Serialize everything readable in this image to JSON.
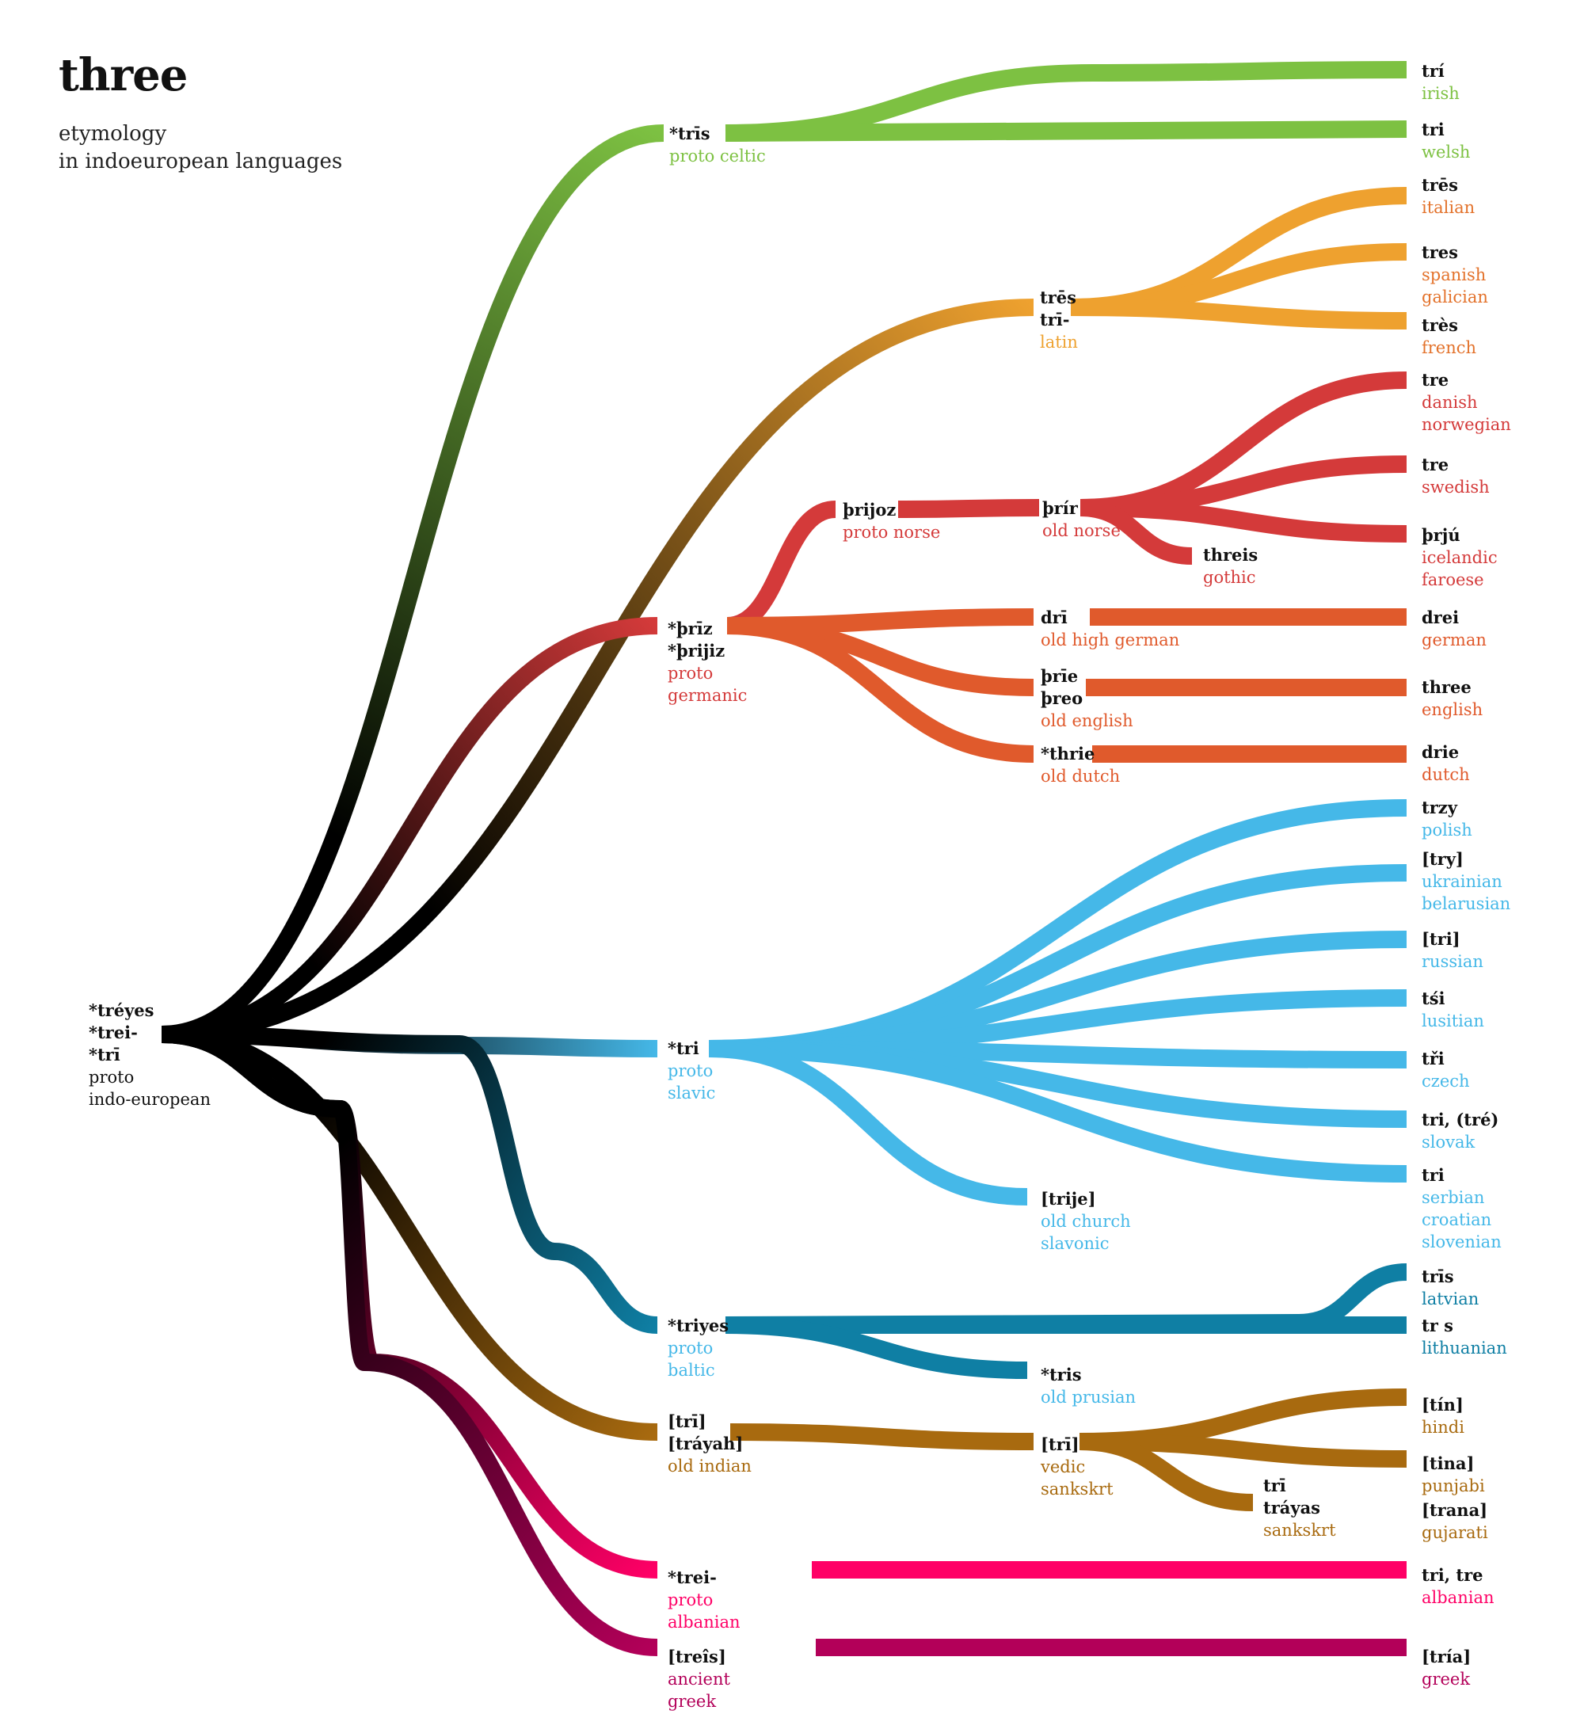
{
  "title": "three",
  "subtitle": [
    "etymology",
    "in indoeuropean languages"
  ],
  "colors": {
    "root": "#000000",
    "celtic": "#7dc142",
    "italic": "#eea12f",
    "germanic": "#d43a3a",
    "west_germanic": "#e05a2c",
    "slavic": "#45b8e8",
    "baltic": "#0f7fa4",
    "indic": "#a86a0f",
    "albanian": "#ff0066",
    "greek": "#b30059"
  },
  "nodes": [
    {
      "id": "pie",
      "words": [
        "*tréyes",
        "*trei-",
        "*trī"
      ],
      "lang": [
        "proto",
        "indo-european"
      ],
      "color": "#111111"
    },
    {
      "id": "proto-celtic",
      "words": [
        "*trīs"
      ],
      "lang": [
        "proto celtic"
      ],
      "color": "#7dc142"
    },
    {
      "id": "irish",
      "words": [
        "trí"
      ],
      "lang": [
        "irish"
      ],
      "color": "#7dc142"
    },
    {
      "id": "welsh",
      "words": [
        "tri"
      ],
      "lang": [
        "welsh"
      ],
      "color": "#7dc142"
    },
    {
      "id": "latin",
      "words": [
        "trēs",
        "trī-"
      ],
      "lang": [
        "latin"
      ],
      "color": "#eea12f"
    },
    {
      "id": "italian",
      "words": [
        "trēs"
      ],
      "lang": [
        "italian"
      ],
      "color": "#e3722b"
    },
    {
      "id": "spanish",
      "words": [
        "tres"
      ],
      "lang": [
        "spanish",
        "galician"
      ],
      "color": "#e3722b"
    },
    {
      "id": "french",
      "words": [
        "très"
      ],
      "lang": [
        "french"
      ],
      "color": "#e3722b"
    },
    {
      "id": "proto-germanic",
      "words": [
        "*þrīz",
        "*þrijiz"
      ],
      "lang": [
        "proto",
        "germanic"
      ],
      "color": "#d43a3a"
    },
    {
      "id": "proto-norse",
      "words": [
        "þrijoz"
      ],
      "lang": [
        "proto norse"
      ],
      "color": "#d43a3a"
    },
    {
      "id": "old-norse",
      "words": [
        "þrír"
      ],
      "lang": [
        "old norse"
      ],
      "color": "#d43a3a"
    },
    {
      "id": "gothic",
      "words": [
        "threis"
      ],
      "lang": [
        "gothic"
      ],
      "color": "#d43a3a"
    },
    {
      "id": "danish",
      "words": [
        "tre"
      ],
      "lang": [
        "danish",
        "norwegian"
      ],
      "color": "#d43a3a"
    },
    {
      "id": "swedish",
      "words": [
        "tre"
      ],
      "lang": [
        "swedish"
      ],
      "color": "#d43a3a"
    },
    {
      "id": "icelandic",
      "words": [
        "þrjú"
      ],
      "lang": [
        "icelandic",
        "faroese"
      ],
      "color": "#d43a3a"
    },
    {
      "id": "old-high-german",
      "words": [
        "drī"
      ],
      "lang": [
        "old high german"
      ],
      "color": "#e05a2c"
    },
    {
      "id": "german",
      "words": [
        "drei"
      ],
      "lang": [
        "german"
      ],
      "color": "#e05a2c"
    },
    {
      "id": "old-english",
      "words": [
        "þrīe",
        "þreo"
      ],
      "lang": [
        "old english"
      ],
      "color": "#e05a2c"
    },
    {
      "id": "english",
      "words": [
        "three"
      ],
      "lang": [
        "english"
      ],
      "color": "#e05a2c"
    },
    {
      "id": "old-dutch",
      "words": [
        "*thrie"
      ],
      "lang": [
        "old dutch"
      ],
      "color": "#e05a2c"
    },
    {
      "id": "dutch",
      "words": [
        "drie"
      ],
      "lang": [
        "dutch"
      ],
      "color": "#e05a2c"
    },
    {
      "id": "proto-slavic",
      "words": [
        "*tri"
      ],
      "lang": [
        "proto",
        "slavic"
      ],
      "color": "#45b8e8"
    },
    {
      "id": "polish",
      "words": [
        "trzy"
      ],
      "lang": [
        "polish"
      ],
      "color": "#45b8e8"
    },
    {
      "id": "ukrainian",
      "words": [
        "[try]"
      ],
      "lang": [
        "ukrainian",
        "belarusian"
      ],
      "color": "#45b8e8"
    },
    {
      "id": "russian",
      "words": [
        "[tri]"
      ],
      "lang": [
        "russian"
      ],
      "color": "#45b8e8"
    },
    {
      "id": "lusitian",
      "words": [
        "tśi"
      ],
      "lang": [
        "lusitian"
      ],
      "color": "#45b8e8"
    },
    {
      "id": "czech",
      "words": [
        "tři"
      ],
      "lang": [
        "czech"
      ],
      "color": "#45b8e8"
    },
    {
      "id": "slovak",
      "words": [
        "tri, (tré)"
      ],
      "lang": [
        "slovak"
      ],
      "color": "#45b8e8"
    },
    {
      "id": "serbian",
      "words": [
        "tri"
      ],
      "lang": [
        "serbian",
        "croatian",
        "slovenian"
      ],
      "color": "#45b8e8"
    },
    {
      "id": "old-church-slavonic",
      "words": [
        "[trije]"
      ],
      "lang": [
        "old church",
        "slavonic"
      ],
      "color": "#45b8e8"
    },
    {
      "id": "proto-baltic",
      "words": [
        "*triyes"
      ],
      "lang": [
        "proto",
        "baltic"
      ],
      "color": "#45b8e8"
    },
    {
      "id": "latvian",
      "words": [
        "trīs"
      ],
      "lang": [
        "latvian"
      ],
      "color": "#0f7fa4"
    },
    {
      "id": "lithuanian",
      "words": [
        "tr s"
      ],
      "lang": [
        "lithuanian"
      ],
      "color": "#0f7fa4"
    },
    {
      "id": "old-prusian",
      "words": [
        "*tris"
      ],
      "lang": [
        "old prusian"
      ],
      "color": "#45b8e8"
    },
    {
      "id": "old-indian",
      "words": [
        "[trī]",
        "[tráyah]"
      ],
      "lang": [
        "old indian"
      ],
      "color": "#a86a0f"
    },
    {
      "id": "vedic",
      "words": [
        "[trī]"
      ],
      "lang": [
        "vedic",
        "sankskrt"
      ],
      "color": "#a86a0f"
    },
    {
      "id": "sanskrit",
      "words": [
        "trī",
        "tráyas"
      ],
      "lang": [
        "sankskrt"
      ],
      "color": "#a86a0f"
    },
    {
      "id": "hindi",
      "words": [
        "[tín]"
      ],
      "lang": [
        "hindi"
      ],
      "color": "#a86a0f"
    },
    {
      "id": "punjabi",
      "words": [
        "[tina]"
      ],
      "lang": [
        "punjabi"
      ],
      "color": "#a86a0f"
    },
    {
      "id": "gujarati",
      "words": [
        "[trana]"
      ],
      "lang": [
        "gujarati"
      ],
      "color": "#a86a0f"
    },
    {
      "id": "proto-albanian",
      "words": [
        "*trei-"
      ],
      "lang": [
        "proto",
        "albanian"
      ],
      "color": "#ff0066"
    },
    {
      "id": "albanian",
      "words": [
        "tri, tre"
      ],
      "lang": [
        "albanian"
      ],
      "color": "#ff0066"
    },
    {
      "id": "ancient-greek",
      "words": [
        "[treîs]"
      ],
      "lang": [
        "ancient",
        "greek"
      ],
      "color": "#b30059"
    },
    {
      "id": "greek",
      "words": [
        "[tría]"
      ],
      "lang": [
        "greek"
      ],
      "color": "#b30059"
    }
  ],
  "edges": [
    {
      "from": "pie",
      "to": "proto-celtic",
      "from_color": "#000000",
      "to_color": "#7dc142"
    },
    {
      "from": "proto-celtic",
      "to": "irish",
      "color": "#7dc142"
    },
    {
      "from": "proto-celtic",
      "to": "welsh",
      "color": "#7dc142"
    },
    {
      "from": "pie",
      "to": "latin",
      "from_color": "#000000",
      "to_color": "#eea12f"
    },
    {
      "from": "latin",
      "to": "italian",
      "color": "#eea12f"
    },
    {
      "from": "latin",
      "to": "spanish",
      "color": "#eea12f"
    },
    {
      "from": "latin",
      "to": "french",
      "color": "#eea12f"
    },
    {
      "from": "pie",
      "to": "proto-germanic",
      "from_color": "#000000",
      "to_color": "#d43a3a"
    },
    {
      "from": "proto-germanic",
      "to": "proto-norse",
      "color": "#d43a3a"
    },
    {
      "from": "proto-norse",
      "to": "old-norse",
      "color": "#d43a3a"
    },
    {
      "from": "old-norse",
      "to": "danish",
      "color": "#d43a3a"
    },
    {
      "from": "old-norse",
      "to": "swedish",
      "color": "#d43a3a"
    },
    {
      "from": "old-norse",
      "to": "icelandic",
      "color": "#d43a3a"
    },
    {
      "from": "old-norse",
      "to": "gothic",
      "color": "#d43a3a"
    },
    {
      "from": "proto-germanic",
      "to": "old-high-german",
      "color": "#e05a2c"
    },
    {
      "from": "old-high-german",
      "to": "german",
      "color": "#e05a2c"
    },
    {
      "from": "proto-germanic",
      "to": "old-english",
      "color": "#e05a2c"
    },
    {
      "from": "old-english",
      "to": "english",
      "color": "#e05a2c"
    },
    {
      "from": "proto-germanic",
      "to": "old-dutch",
      "color": "#e05a2c"
    },
    {
      "from": "old-dutch",
      "to": "dutch",
      "color": "#e05a2c"
    },
    {
      "from": "pie",
      "to": "proto-slavic",
      "from_color": "#000000",
      "to_color": "#45b8e8"
    },
    {
      "from": "proto-slavic",
      "to": "polish",
      "color": "#45b8e8"
    },
    {
      "from": "proto-slavic",
      "to": "ukrainian",
      "color": "#45b8e8"
    },
    {
      "from": "proto-slavic",
      "to": "russian",
      "color": "#45b8e8"
    },
    {
      "from": "proto-slavic",
      "to": "lusitian",
      "color": "#45b8e8"
    },
    {
      "from": "proto-slavic",
      "to": "czech",
      "color": "#45b8e8"
    },
    {
      "from": "proto-slavic",
      "to": "slovak",
      "color": "#45b8e8"
    },
    {
      "from": "proto-slavic",
      "to": "serbian",
      "color": "#45b8e8"
    },
    {
      "from": "proto-slavic",
      "to": "old-church-slavonic",
      "color": "#45b8e8"
    },
    {
      "from": "pie",
      "to": "proto-baltic",
      "from_color": "#000000",
      "to_color": "#0f7fa4"
    },
    {
      "from": "proto-baltic",
      "to": "latvian",
      "color": "#0f7fa4"
    },
    {
      "from": "proto-baltic",
      "to": "lithuanian",
      "color": "#0f7fa4"
    },
    {
      "from": "proto-baltic",
      "to": "old-prusian",
      "color": "#0f7fa4"
    },
    {
      "from": "pie",
      "to": "old-indian",
      "from_color": "#000000",
      "to_color": "#a86a0f"
    },
    {
      "from": "old-indian",
      "to": "vedic",
      "color": "#a86a0f"
    },
    {
      "from": "vedic",
      "to": "hindi",
      "color": "#a86a0f"
    },
    {
      "from": "vedic",
      "to": "punjabi",
      "color": "#a86a0f"
    },
    {
      "from": "vedic",
      "to": "sanskrit",
      "color": "#a86a0f"
    },
    {
      "from": "pie",
      "to": "proto-albanian",
      "from_color": "#000000",
      "to_color": "#ff0066"
    },
    {
      "from": "proto-albanian",
      "to": "albanian",
      "color": "#ff0066"
    },
    {
      "from": "pie",
      "to": "ancient-greek",
      "from_color": "#000000",
      "to_color": "#b30059"
    },
    {
      "from": "ancient-greek",
      "to": "greek",
      "color": "#b30059"
    }
  ]
}
